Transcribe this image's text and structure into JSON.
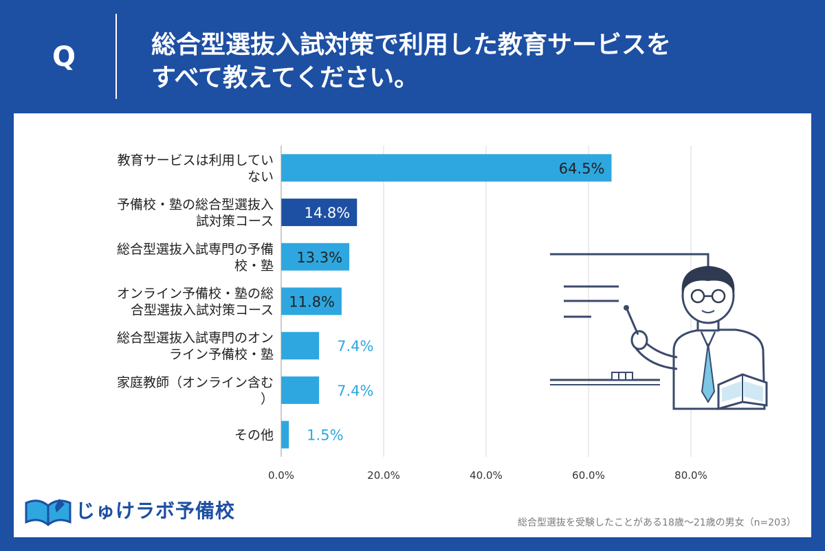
{
  "question": {
    "label": "Q",
    "line1": "総合型選抜入試対策で利用した教育サービスを",
    "line2": "すべて教えてください。"
  },
  "chart_data": {
    "type": "bar",
    "orientation": "horizontal",
    "categories": [
      [
        "教育サービスは利用してい",
        "ない"
      ],
      [
        "予備校・塾の総合型選抜入",
        "試対策コース"
      ],
      [
        "総合型選抜入試専門の予備",
        "校・塾"
      ],
      [
        "オンライン予備校・塾の総",
        "合型選抜入試対策コース"
      ],
      [
        "総合型選抜入試専門のオン",
        "ライン予備校・塾"
      ],
      [
        "家庭教師（オンライン含む",
        "）"
      ],
      [
        "その他"
      ]
    ],
    "values": [
      64.5,
      14.8,
      13.3,
      11.8,
      7.4,
      7.4,
      1.5
    ],
    "value_labels": [
      "64.5%",
      "14.8%",
      "13.3%",
      "11.8%",
      "7.4%",
      "7.4%",
      "1.5%"
    ],
    "xlim": [
      0,
      80
    ],
    "ticks": [
      0,
      20,
      40,
      60,
      80
    ],
    "tick_labels": [
      "0.0%",
      "20.0%",
      "40.0%",
      "60.0%",
      "80.0%"
    ],
    "grid": true,
    "colors": {
      "default": "#2ea7e0",
      "highlight": "#1d4fa3",
      "highlight_index": 1,
      "label_inside": "#222222",
      "label_inside_dark": "#ffffff",
      "label_outside": "#2ea7e0"
    }
  },
  "brand": {
    "name": "じゅけラボ予備校",
    "icon": "book-logo-icon"
  },
  "footnote": "総合型選抜を受験したことがある18歳〜21歳の男女（n=203）"
}
